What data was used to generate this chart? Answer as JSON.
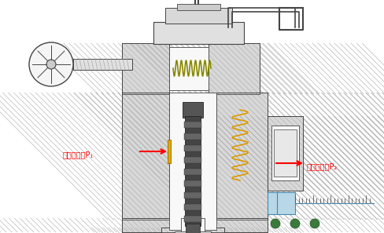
{
  "bg_color": "#ffffff",
  "fig_width": 4.88,
  "fig_height": 2.97,
  "dpi": 100,
  "label1_text": "一次压力油P₁",
  "label2_text": "二次压力油P₂",
  "light_blue": "#b8d8e8",
  "nav_dot_color": "#3a7a3a",
  "hatch_bg": "#d8d8d8",
  "hatch_line": "#aaaaaa",
  "body_edge": "#444444",
  "spring_col": "#cc8800",
  "spool_dark": "#3a3a3a",
  "white_channel": "#f8f8f8"
}
